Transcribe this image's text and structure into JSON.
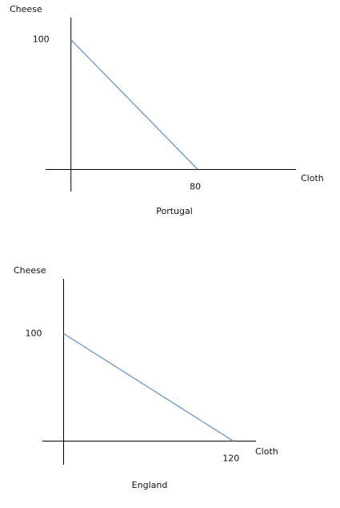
{
  "chart_data": [
    {
      "type": "line",
      "caption": "Portugal",
      "ylabel": "Cheese",
      "xlabel": "Cloth",
      "x": [
        0,
        80
      ],
      "values": [
        100,
        0
      ],
      "color": "#5b8fd6",
      "xlim": [
        -16,
        142
      ],
      "ylim": [
        -17,
        117
      ],
      "xticks": [
        80
      ],
      "yticks": [
        100
      ]
    },
    {
      "type": "line",
      "caption": "England",
      "ylabel": "Cheese",
      "xlabel": "Cloth",
      "x": [
        0,
        120
      ],
      "values": [
        100,
        0
      ],
      "color": "#5b8fd6",
      "xlim": [
        -15,
        136
      ],
      "ylim": [
        -22,
        151
      ],
      "xticks": [
        120
      ],
      "yticks": [
        100
      ]
    }
  ]
}
